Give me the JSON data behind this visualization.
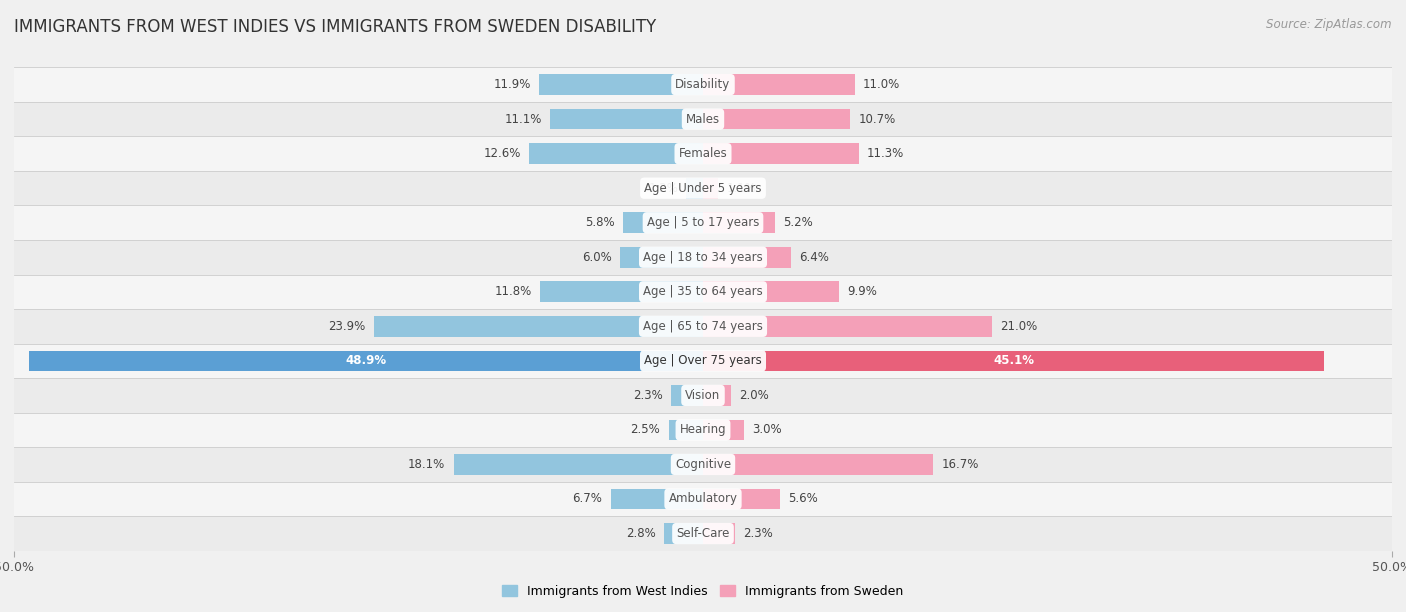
{
  "title": "IMMIGRANTS FROM WEST INDIES VS IMMIGRANTS FROM SWEDEN DISABILITY",
  "source": "Source: ZipAtlas.com",
  "categories": [
    "Disability",
    "Males",
    "Females",
    "Age | Under 5 years",
    "Age | 5 to 17 years",
    "Age | 18 to 34 years",
    "Age | 35 to 64 years",
    "Age | 65 to 74 years",
    "Age | Over 75 years",
    "Vision",
    "Hearing",
    "Cognitive",
    "Ambulatory",
    "Self-Care"
  ],
  "west_indies": [
    11.9,
    11.1,
    12.6,
    1.2,
    5.8,
    6.0,
    11.8,
    23.9,
    48.9,
    2.3,
    2.5,
    18.1,
    6.7,
    2.8
  ],
  "sweden": [
    11.0,
    10.7,
    11.3,
    1.1,
    5.2,
    6.4,
    9.9,
    21.0,
    45.1,
    2.0,
    3.0,
    16.7,
    5.6,
    2.3
  ],
  "wi_color": "#92c5de",
  "sw_color": "#f4a0b8",
  "wi_full_color": "#5b9fd4",
  "sw_full_color": "#e8607a",
  "axis_max": 50.0,
  "row_colors": [
    "#f5f5f5",
    "#ebebeb"
  ],
  "title_fontsize": 12,
  "bar_fontsize": 8.5,
  "legend_label_wi": "Immigrants from West Indies",
  "legend_label_sw": "Immigrants from Sweden",
  "special_row_idx": 8
}
